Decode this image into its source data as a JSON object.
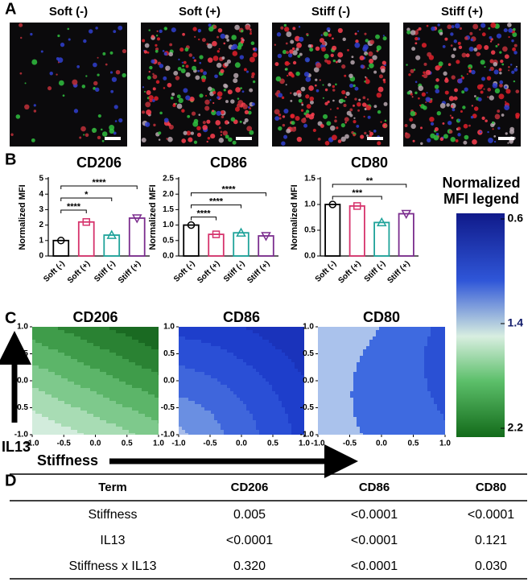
{
  "panels": {
    "a": "A",
    "b": "B",
    "c": "C",
    "d": "D"
  },
  "images": {
    "titles": [
      "Soft (-)",
      "Soft (+)",
      "Stiff (-)",
      "Stiff (+)"
    ]
  },
  "chart_data": [
    {
      "type": "bar",
      "title": "CD206",
      "y_label": "Normalized MFI",
      "categories": [
        "Soft (-)",
        "Soft (+)",
        "Stiff (-)",
        "Stiff (+)"
      ],
      "values": [
        1.0,
        2.2,
        1.35,
        2.45
      ],
      "colors": [
        "#000000",
        "#d6336c",
        "#1fa39a",
        "#7b2d8e"
      ],
      "ylim": [
        0,
        5
      ],
      "yticks": [
        0,
        1,
        2,
        3,
        4,
        5
      ],
      "significance": [
        {
          "compare": [
            "Soft (-)",
            "Soft (+)"
          ],
          "label": "****"
        },
        {
          "compare": [
            "Soft (-)",
            "Stiff (-)"
          ],
          "label": "*"
        },
        {
          "compare": [
            "Soft (-)",
            "Stiff (+)"
          ],
          "label": "****"
        }
      ]
    },
    {
      "type": "bar",
      "title": "CD86",
      "y_label": "Normalized MFI",
      "categories": [
        "Soft (-)",
        "Soft (+)",
        "Stiff (-)",
        "Stiff (+)"
      ],
      "values": [
        1.0,
        0.7,
        0.75,
        0.65
      ],
      "colors": [
        "#000000",
        "#d6336c",
        "#1fa39a",
        "#7b2d8e"
      ],
      "ylim": [
        0,
        2.5
      ],
      "yticks": [
        {
          "value": 0,
          "label": "0.0"
        },
        0.5,
        {
          "value": 1,
          "label": "1.0"
        },
        1.5,
        {
          "value": 2,
          "label": "2.0"
        },
        2.5
      ],
      "significance": [
        {
          "compare": [
            "Soft (-)",
            "Soft (+)"
          ],
          "label": "****"
        },
        {
          "compare": [
            "Soft (-)",
            "Stiff (-)"
          ],
          "label": "****"
        },
        {
          "compare": [
            "Soft (-)",
            "Stiff (+)"
          ],
          "label": "****"
        }
      ]
    },
    {
      "type": "bar",
      "title": "CD80",
      "y_label": "Normalized MFI",
      "categories": [
        "Soft (-)",
        "Soft (+)",
        "Stiff (-)",
        "Stiff (+)"
      ],
      "values": [
        1.0,
        0.97,
        0.65,
        0.82
      ],
      "colors": [
        "#000000",
        "#d6336c",
        "#1fa39a",
        "#7b2d8e"
      ],
      "ylim": [
        0,
        1.5
      ],
      "yticks": [
        {
          "value": 0,
          "label": "0.0"
        },
        0.5,
        {
          "value": 1,
          "label": "1.0"
        },
        1.5
      ],
      "significance": [
        {
          "compare": [
            "Soft (-)",
            "Stiff (-)"
          ],
          "label": "***"
        },
        {
          "compare": [
            "Soft (-)",
            "Stiff (+)"
          ],
          "label": "**"
        }
      ]
    },
    {
      "type": "contour",
      "title": "CD206",
      "xlim": [
        -1,
        1
      ],
      "ylim": [
        -1,
        1
      ],
      "xticks": [
        {
          "value": -1,
          "label": "-1.0"
        },
        -0.5,
        {
          "value": 0,
          "label": "0.0"
        },
        0.5,
        {
          "value": 1,
          "label": "1.0"
        }
      ],
      "yticks": [
        {
          "value": -1,
          "label": "-1.0"
        },
        -0.5,
        {
          "value": 0,
          "label": "0.0"
        },
        0.5,
        {
          "value": 1,
          "label": "1.0"
        }
      ]
    },
    {
      "type": "contour",
      "title": "CD86",
      "xlim": [
        -1,
        1
      ],
      "ylim": [
        -1,
        1
      ],
      "xticks": [
        {
          "value": -1,
          "label": "-1.0"
        },
        -0.5,
        {
          "value": 0,
          "label": "0.0"
        },
        0.5,
        {
          "value": 1,
          "label": "1.0"
        }
      ],
      "yticks": [
        {
          "value": -1,
          "label": "-1.0"
        },
        -0.5,
        {
          "value": 0,
          "label": "0.0"
        },
        0.5,
        {
          "value": 1,
          "label": "1.0"
        }
      ]
    },
    {
      "type": "contour",
      "title": "CD80",
      "xlim": [
        -1,
        1
      ],
      "ylim": [
        -1,
        1
      ],
      "xticks": [
        {
          "value": -1,
          "label": "-1.0"
        },
        -0.5,
        {
          "value": 0,
          "label": "0.0"
        },
        0.5,
        {
          "value": 1,
          "label": "1.0"
        }
      ],
      "yticks": [
        {
          "value": -1,
          "label": "-1.0"
        },
        -0.5,
        {
          "value": 0,
          "label": "0.0"
        },
        0.5,
        {
          "value": 1,
          "label": "1.0"
        }
      ]
    }
  ],
  "legend": {
    "title_lines": [
      "Normalized",
      "MFI legend"
    ],
    "lim": [
      0.6,
      2.2
    ],
    "ticks": [
      0.6,
      1.4,
      2.2
    ]
  },
  "axis_arrows": {
    "y": "IL13",
    "x": "Stiffness"
  },
  "table": {
    "header": [
      "Term",
      "CD206",
      "CD86",
      "CD80"
    ],
    "rows": [
      [
        "Stiffness",
        "0.005",
        "<0.0001",
        "<0.0001"
      ],
      [
        "IL13",
        "<0.0001",
        "<0.0001",
        "0.121"
      ],
      [
        "Stiffness x IL13",
        "0.320",
        "<0.0001",
        "0.030"
      ]
    ]
  }
}
